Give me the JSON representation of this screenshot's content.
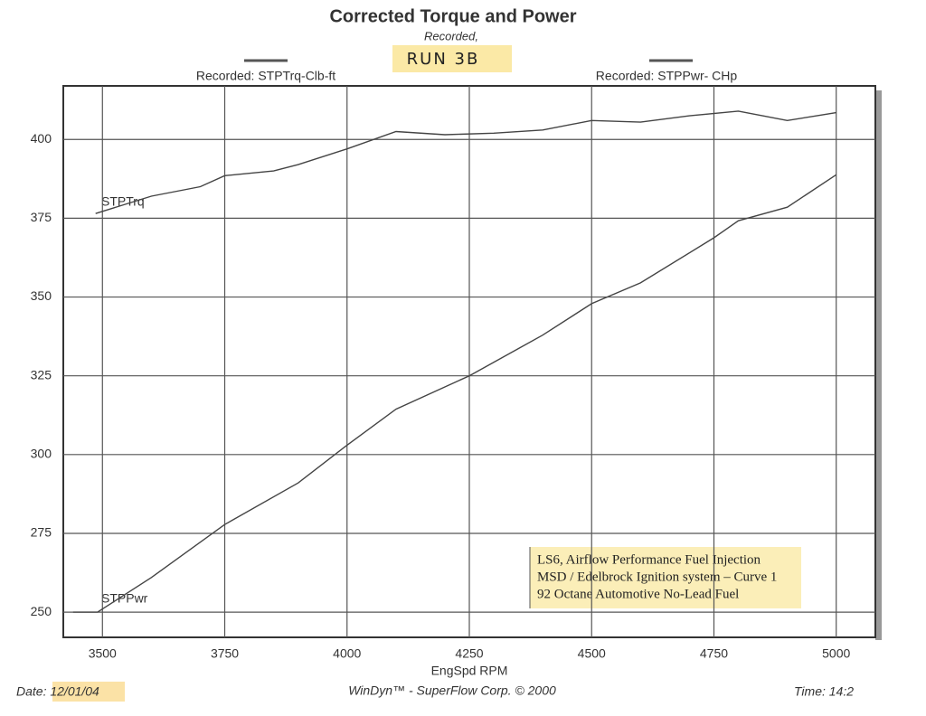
{
  "chart_data": {
    "type": "line",
    "title": "Corrected Torque and Power",
    "subtitle": "Recorded,",
    "run_label": "RUN 3B",
    "left_header": "Recorded: STPTrq-Clb-ft",
    "right_header": "Recorded: STPPwr- CHp",
    "x_label": "EngSpd  RPM",
    "note": [
      "LS6,  Airflow Performance Fuel Injection",
      "MSD / Edelbrock Ignition system – Curve 1",
      "92 Octane Automotive No-Lead Fuel"
    ],
    "footer": {
      "date": "Date: 12/01/04",
      "credit": "WinDyn™ - SuperFlow Corp. © 2000",
      "time": "Time: 14:2"
    },
    "xlim": [
      3420,
      5080
    ],
    "ylim": [
      242,
      417
    ],
    "xticks": [
      3500,
      3750,
      4000,
      4250,
      4500,
      4750,
      5000
    ],
    "yticks": [
      250,
      275,
      300,
      325,
      350,
      375,
      400
    ],
    "grid": true,
    "series": [
      {
        "name": "STPTrq",
        "color": "#444444",
        "x": [
          3486,
          3600,
          3700,
          3750,
          3850,
          3900,
          4000,
          4100,
          4200,
          4300,
          4400,
          4500,
          4600,
          4700,
          4800,
          4900,
          5000
        ],
        "values": [
          376.5,
          382,
          385,
          388.5,
          390,
          392,
          397,
          402.5,
          401.5,
          402,
          403,
          406,
          405.5,
          407.5,
          409,
          406,
          408.5
        ]
      },
      {
        "name": "STPPwr",
        "color": "#444444",
        "x": [
          3440,
          3490,
          3600,
          3750,
          3900,
          4000,
          4100,
          4250,
          4400,
          4500,
          4600,
          4750,
          4800,
          4900,
          5000
        ],
        "values": [
          250,
          250,
          261,
          277.8,
          291,
          303,
          314.4,
          325,
          337.9,
          347.9,
          354.5,
          368.8,
          374.2,
          378.5,
          388.8
        ]
      }
    ]
  }
}
